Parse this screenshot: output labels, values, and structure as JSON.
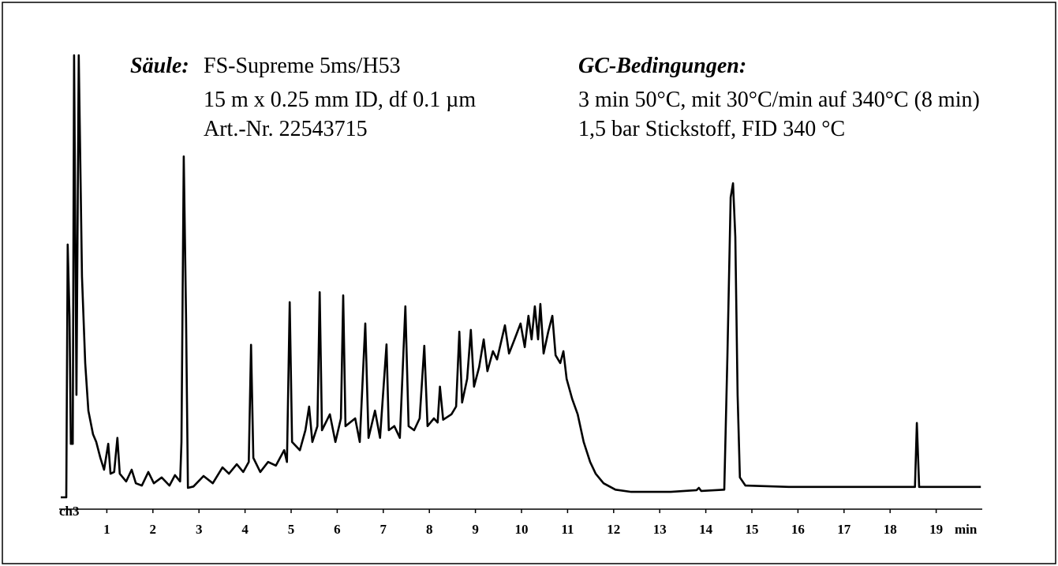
{
  "chart_data": {
    "type": "line",
    "column": {
      "label": "Säule:",
      "lines": [
        "FS-Supreme 5ms/H53",
        "15 m x 0.25 mm ID, df 0.1 µm",
        "Art.-Nr. 22543715"
      ]
    },
    "conditions": {
      "label": "GC-Bedingungen:",
      "lines": [
        "3 min 50°C, mit 30°C/min auf 340°C (8 min)",
        "1,5 bar Stickstoff, FID 340 °C"
      ]
    },
    "channel": "ch3",
    "x_unit": "min",
    "color": "#000000",
    "xlim": [
      0,
      20
    ],
    "ylim": [
      0,
      100
    ],
    "xticks": [
      1,
      2,
      3,
      4,
      5,
      6,
      7,
      8,
      9,
      10,
      11,
      12,
      13,
      14,
      15,
      16,
      17,
      18,
      19
    ],
    "x": [
      0,
      0.12,
      0.15,
      0.19,
      0.22,
      0.26,
      0.29,
      0.34,
      0.39,
      0.46,
      0.53,
      0.6,
      0.7,
      0.77,
      0.86,
      0.94,
      1.03,
      1.08,
      1.16,
      1.23,
      1.28,
      1.42,
      1.54,
      1.63,
      1.76,
      1.9,
      2.02,
      2.19,
      2.36,
      2.48,
      2.59,
      2.62,
      2.67,
      2.72,
      2.76,
      2.88,
      3.1,
      3.3,
      3.51,
      3.65,
      3.82,
      3.96,
      4.08,
      4.13,
      4.18,
      4.33,
      4.5,
      4.67,
      4.85,
      4.91,
      4.97,
      5.02,
      5.19,
      5.31,
      5.39,
      5.46,
      5.57,
      5.62,
      5.67,
      5.84,
      5.96,
      6.08,
      6.13,
      6.18,
      6.39,
      6.49,
      6.61,
      6.68,
      6.82,
      6.93,
      7.07,
      7.12,
      7.24,
      7.36,
      7.48,
      7.55,
      7.67,
      7.79,
      7.89,
      7.96,
      8.1,
      8.18,
      8.23,
      8.3,
      8.48,
      8.58,
      8.65,
      8.71,
      8.82,
      8.9,
      8.97,
      9.08,
      9.18,
      9.26,
      9.38,
      9.47,
      9.64,
      9.73,
      9.85,
      9.98,
      10.07,
      10.15,
      10.22,
      10.29,
      10.36,
      10.41,
      10.48,
      10.58,
      10.67,
      10.74,
      10.84,
      10.91,
      10.98,
      11.1,
      11.22,
      11.35,
      11.49,
      11.61,
      11.78,
      12.04,
      12.38,
      13.24,
      13.8,
      13.85,
      13.9,
      14.4,
      14.47,
      14.54,
      14.59,
      14.64,
      14.69,
      14.74,
      14.86,
      15.8,
      18.54,
      18.58,
      18.63,
      19.97
    ],
    "values": [
      2.6,
      2.6,
      58.3,
      42.6,
      14.4,
      14.4,
      100,
      25.2,
      100,
      51.3,
      32.2,
      21.7,
      16.5,
      14.8,
      11.3,
      8.7,
      14.4,
      7.8,
      8.2,
      15.7,
      7.8,
      6.1,
      8.7,
      5.7,
      5.2,
      8.2,
      5.7,
      7.0,
      5.2,
      7.5,
      6.1,
      14.8,
      77.7,
      42.6,
      4.7,
      5.0,
      7.3,
      5.7,
      9.2,
      7.8,
      9.9,
      8.2,
      10.4,
      36.2,
      11.3,
      8.2,
      10.4,
      9.6,
      13.0,
      10.4,
      45.6,
      14.8,
      13.0,
      17.4,
      22.6,
      14.8,
      18.3,
      47.8,
      17.4,
      20.9,
      14.8,
      20.0,
      47.1,
      18.3,
      20.0,
      14.8,
      40.9,
      15.7,
      21.7,
      15.7,
      36.3,
      17.4,
      18.3,
      15.7,
      44.7,
      18.3,
      17.4,
      20.0,
      36.0,
      18.3,
      20.0,
      19.1,
      27.0,
      19.7,
      20.9,
      22.6,
      39.1,
      23.5,
      28.7,
      39.5,
      27.0,
      31.3,
      37.4,
      30.4,
      34.8,
      33.0,
      40.5,
      34.3,
      37.4,
      40.9,
      35.7,
      42.6,
      37.4,
      44.7,
      37.4,
      45.2,
      34.3,
      39.1,
      42.6,
      33.9,
      32.2,
      34.8,
      28.7,
      24.3,
      20.9,
      14.8,
      10.4,
      7.8,
      5.7,
      4.3,
      3.8,
      3.8,
      4.2,
      4.7,
      4.0,
      4.3,
      33.9,
      68.7,
      71.8,
      60.0,
      25.2,
      7.0,
      5.2,
      4.9,
      4.9,
      19.0,
      4.9,
      4.9
    ]
  }
}
